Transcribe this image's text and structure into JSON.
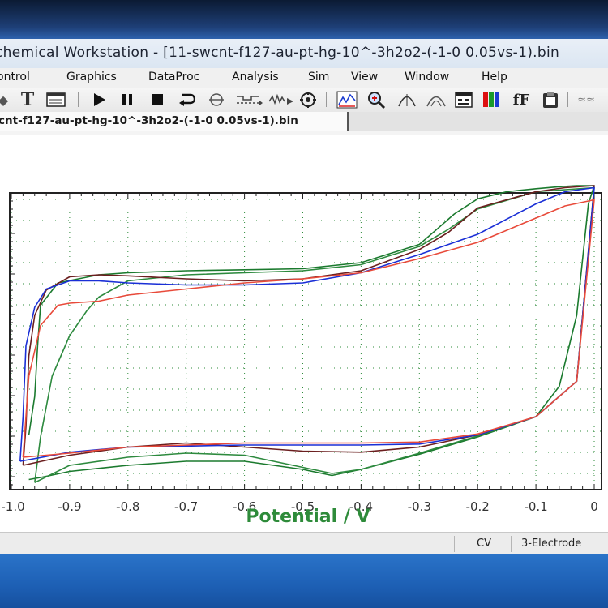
{
  "window": {
    "title": "chemical Workstation - [11-swcnt-f127-au-pt-hg-10^-3h2o2-(-1-0 0.05vs-1).bin"
  },
  "menu": {
    "items": [
      "ontrol",
      "Graphics",
      "DataProc",
      "Analysis",
      "Sim",
      "View",
      "Window",
      "Help"
    ]
  },
  "toolbar": {
    "text_tool": "T",
    "font_tool": "fF",
    "icons": [
      "text-tool-icon",
      "table-icon",
      "run-icon",
      "pause-icon",
      "stop-icon",
      "reverse-icon",
      "target-icon",
      "step-icon",
      "noise-icon",
      "settings-icon",
      "graph-icon",
      "zoom-icon",
      "peak-icon",
      "peak-outline-icon",
      "grid-icon",
      "color-icon",
      "font-icon",
      "clipboard-icon"
    ]
  },
  "document_tab": {
    "label": "cnt-f127-au-pt-hg-10^-3h2o2-(-1-0 0.05vs-1).bin"
  },
  "chart_data": {
    "type": "line",
    "xlabel": "Potential / V",
    "ylabel": "",
    "xlim": [
      -1.0,
      0.0
    ],
    "x_ticks": [
      "-1.0",
      "-0.9",
      "-0.8",
      "-0.7",
      "-0.6",
      "-0.5",
      "-0.4",
      "-0.3",
      "-0.2",
      "-0.1",
      "0"
    ],
    "grid": true,
    "series": [
      {
        "color": "#1b7a2e",
        "x": [
          -0.97,
          -0.96,
          -0.955,
          -0.95,
          -0.92,
          -0.85,
          -0.8,
          -0.7,
          -0.6,
          -0.5,
          -0.4,
          -0.3,
          -0.27,
          -0.24,
          -0.2,
          -0.15,
          -0.1,
          -0.06,
          -0.03,
          -0.01,
          0.0,
          -0.01,
          -0.03,
          -0.06,
          -0.1,
          -0.2,
          -0.3,
          -0.4,
          -0.45,
          -0.5,
          -0.6,
          -0.7,
          -0.8,
          -0.9,
          -0.95,
          -0.97
        ],
        "y": [
          22,
          60,
          110,
          150,
          172,
          180,
          182,
          184,
          185,
          186,
          192,
          210,
          225,
          240,
          255,
          262,
          265,
          267,
          268,
          268,
          268,
          250,
          140,
          70,
          40,
          20,
          3,
          -12,
          -18,
          -12,
          -4,
          -4,
          -8,
          -14,
          -20,
          -22
        ]
      },
      {
        "color": "#2d8a3e",
        "x": [
          -0.96,
          -0.95,
          -0.93,
          -0.9,
          -0.87,
          -0.85,
          -0.8,
          -0.7,
          -0.6,
          -0.5,
          -0.4,
          -0.3,
          -0.25,
          -0.2,
          -0.1,
          0.0,
          -0.03,
          -0.1,
          -0.2,
          -0.3,
          -0.4,
          -0.45,
          -0.5,
          -0.6,
          -0.7,
          -0.8,
          -0.9,
          -0.96
        ],
        "y": [
          -25,
          20,
          80,
          120,
          145,
          158,
          174,
          180,
          182,
          184,
          190,
          208,
          225,
          245,
          262,
          266,
          75,
          40,
          21,
          4,
          -12,
          -16,
          -10,
          2,
          4,
          0,
          -8,
          -25
        ]
      },
      {
        "color": "#6b1f1f",
        "x": [
          -0.98,
          -0.975,
          -0.97,
          -0.96,
          -0.94,
          -0.9,
          -0.85,
          -0.8,
          -0.7,
          -0.6,
          -0.5,
          -0.4,
          -0.3,
          -0.25,
          -0.2,
          -0.1,
          -0.05,
          0.0,
          -0.03,
          -0.1,
          -0.2,
          -0.3,
          -0.4,
          -0.5,
          -0.6,
          -0.7,
          -0.8,
          -0.9,
          -0.98
        ],
        "y": [
          -8,
          30,
          100,
          140,
          165,
          178,
          180,
          179,
          176,
          174,
          176,
          184,
          205,
          222,
          246,
          262,
          266,
          268,
          75,
          40,
          22,
          10,
          5,
          6,
          10,
          14,
          10,
          2,
          -8
        ]
      },
      {
        "color": "#1a2fd6",
        "x": [
          -0.985,
          -0.98,
          -0.975,
          -0.96,
          -0.94,
          -0.9,
          -0.85,
          -0.8,
          -0.7,
          -0.6,
          -0.5,
          -0.4,
          -0.3,
          -0.2,
          -0.1,
          -0.05,
          0.0,
          -0.03,
          -0.1,
          -0.2,
          -0.3,
          -0.4,
          -0.5,
          -0.6,
          -0.7,
          -0.8,
          -0.9,
          -0.985
        ],
        "y": [
          -4,
          40,
          110,
          148,
          166,
          174,
          174,
          172,
          170,
          170,
          172,
          182,
          200,
          220,
          250,
          262,
          266,
          75,
          40,
          22,
          13,
          12,
          12,
          12,
          11,
          10,
          5,
          -4
        ]
      },
      {
        "color": "#e84a3a",
        "x": [
          -0.98,
          -0.97,
          -0.95,
          -0.92,
          -0.9,
          -0.85,
          -0.8,
          -0.7,
          -0.6,
          -0.5,
          -0.4,
          -0.3,
          -0.2,
          -0.1,
          -0.05,
          0.0,
          -0.03,
          -0.1,
          -0.2,
          -0.3,
          -0.4,
          -0.5,
          -0.6,
          -0.7,
          -0.8,
          -0.9,
          -0.98
        ],
        "y": [
          0,
          80,
          130,
          150,
          152,
          154,
          160,
          166,
          172,
          176,
          182,
          196,
          212,
          236,
          248,
          254,
          75,
          40,
          23,
          15,
          14,
          14,
          14,
          12,
          10,
          4,
          0
        ]
      }
    ]
  },
  "status": {
    "mode": "CV",
    "electrode": "3-Electrode"
  }
}
